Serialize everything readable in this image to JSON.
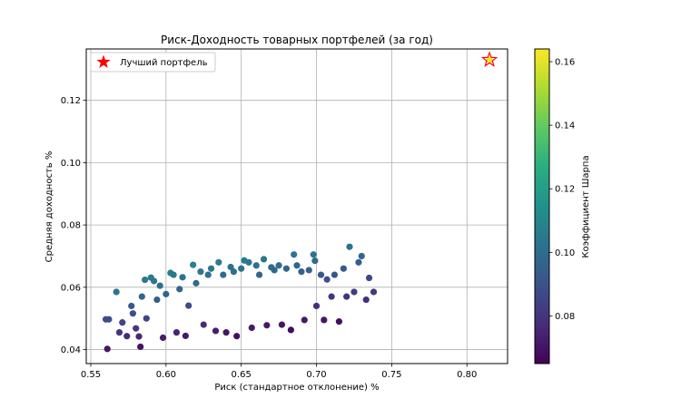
{
  "chart_data": {
    "type": "scatter",
    "title": "Риск-Доходность товарных портфелей (за год)",
    "xlabel": "Риск (стандартное отклонение) %",
    "ylabel": "Средняя доходность %",
    "xlim": [
      0.547,
      0.827
    ],
    "ylim": [
      0.0355,
      0.1365
    ],
    "xticks": [
      {
        "v": 0.55,
        "label": "0.55"
      },
      {
        "v": 0.6,
        "label": "0.60"
      },
      {
        "v": 0.65,
        "label": "0.65"
      },
      {
        "v": 0.7,
        "label": "0.70"
      },
      {
        "v": 0.75,
        "label": "0.75"
      },
      {
        "v": 0.8,
        "label": "0.80"
      }
    ],
    "yticks": [
      {
        "v": 0.04,
        "label": "0.04"
      },
      {
        "v": 0.06,
        "label": "0.06"
      },
      {
        "v": 0.08,
        "label": "0.08"
      },
      {
        "v": 0.1,
        "label": "0.10"
      },
      {
        "v": 0.12,
        "label": "0.12"
      }
    ],
    "grid": true,
    "colormap": "viridis",
    "colorbar": {
      "label": "Коэффициент Шарпа",
      "min": 0.065,
      "max": 0.164,
      "ticks": [
        {
          "v": 0.08,
          "label": "0.08"
        },
        {
          "v": 0.1,
          "label": "0.10"
        },
        {
          "v": 0.12,
          "label": "0.12"
        },
        {
          "v": 0.14,
          "label": "0.14"
        },
        {
          "v": 0.16,
          "label": "0.16"
        }
      ]
    },
    "legend": {
      "position": "top-left",
      "entries": [
        {
          "label": "Лучший портфель",
          "marker": "red-star"
        }
      ]
    },
    "best_portfolio": {
      "x": 0.815,
      "y": 0.133,
      "sharpe": 0.163,
      "color": "#ff0000"
    },
    "points": [
      {
        "x": 0.561,
        "y": 0.0402,
        "c": 0.071
      },
      {
        "x": 0.56,
        "y": 0.0497,
        "c": 0.089
      },
      {
        "x": 0.562,
        "y": 0.0497,
        "c": 0.088
      },
      {
        "x": 0.567,
        "y": 0.0585,
        "c": 0.103
      },
      {
        "x": 0.569,
        "y": 0.0455,
        "c": 0.08
      },
      {
        "x": 0.571,
        "y": 0.0487,
        "c": 0.085
      },
      {
        "x": 0.574,
        "y": 0.0443,
        "c": 0.077
      },
      {
        "x": 0.577,
        "y": 0.054,
        "c": 0.093
      },
      {
        "x": 0.578,
        "y": 0.0516,
        "c": 0.089
      },
      {
        "x": 0.58,
        "y": 0.0468,
        "c": 0.081
      },
      {
        "x": 0.582,
        "y": 0.0442,
        "c": 0.076
      },
      {
        "x": 0.583,
        "y": 0.0409,
        "c": 0.07
      },
      {
        "x": 0.584,
        "y": 0.057,
        "c": 0.097
      },
      {
        "x": 0.586,
        "y": 0.0624,
        "c": 0.105
      },
      {
        "x": 0.587,
        "y": 0.05,
        "c": 0.085
      },
      {
        "x": 0.59,
        "y": 0.0631,
        "c": 0.106
      },
      {
        "x": 0.592,
        "y": 0.062,
        "c": 0.104
      },
      {
        "x": 0.594,
        "y": 0.056,
        "c": 0.094
      },
      {
        "x": 0.596,
        "y": 0.0605,
        "c": 0.101
      },
      {
        "x": 0.598,
        "y": 0.0438,
        "c": 0.073
      },
      {
        "x": 0.6,
        "y": 0.0578,
        "c": 0.096
      },
      {
        "x": 0.603,
        "y": 0.0646,
        "c": 0.106
      },
      {
        "x": 0.605,
        "y": 0.064,
        "c": 0.105
      },
      {
        "x": 0.607,
        "y": 0.0455,
        "c": 0.075
      },
      {
        "x": 0.609,
        "y": 0.0594,
        "c": 0.097
      },
      {
        "x": 0.611,
        "y": 0.0632,
        "c": 0.103
      },
      {
        "x": 0.613,
        "y": 0.0444,
        "c": 0.072
      },
      {
        "x": 0.615,
        "y": 0.0541,
        "c": 0.088
      },
      {
        "x": 0.618,
        "y": 0.0672,
        "c": 0.108
      },
      {
        "x": 0.62,
        "y": 0.0613,
        "c": 0.099
      },
      {
        "x": 0.623,
        "y": 0.065,
        "c": 0.104
      },
      {
        "x": 0.625,
        "y": 0.048,
        "c": 0.077
      },
      {
        "x": 0.628,
        "y": 0.064,
        "c": 0.102
      },
      {
        "x": 0.63,
        "y": 0.066,
        "c": 0.105
      },
      {
        "x": 0.633,
        "y": 0.046,
        "c": 0.073
      },
      {
        "x": 0.635,
        "y": 0.068,
        "c": 0.107
      },
      {
        "x": 0.638,
        "y": 0.064,
        "c": 0.1
      },
      {
        "x": 0.64,
        "y": 0.0455,
        "c": 0.071
      },
      {
        "x": 0.643,
        "y": 0.0665,
        "c": 0.103
      },
      {
        "x": 0.645,
        "y": 0.065,
        "c": 0.101
      },
      {
        "x": 0.647,
        "y": 0.0443,
        "c": 0.069
      },
      {
        "x": 0.65,
        "y": 0.066,
        "c": 0.102
      },
      {
        "x": 0.652,
        "y": 0.0686,
        "c": 0.105
      },
      {
        "x": 0.655,
        "y": 0.068,
        "c": 0.104
      },
      {
        "x": 0.657,
        "y": 0.047,
        "c": 0.072
      },
      {
        "x": 0.66,
        "y": 0.067,
        "c": 0.102
      },
      {
        "x": 0.662,
        "y": 0.064,
        "c": 0.097
      },
      {
        "x": 0.665,
        "y": 0.069,
        "c": 0.104
      },
      {
        "x": 0.667,
        "y": 0.0478,
        "c": 0.072
      },
      {
        "x": 0.67,
        "y": 0.0664,
        "c": 0.099
      },
      {
        "x": 0.672,
        "y": 0.0655,
        "c": 0.098
      },
      {
        "x": 0.675,
        "y": 0.067,
        "c": 0.1
      },
      {
        "x": 0.677,
        "y": 0.048,
        "c": 0.071
      },
      {
        "x": 0.68,
        "y": 0.066,
        "c": 0.098
      },
      {
        "x": 0.683,
        "y": 0.0463,
        "c": 0.068
      },
      {
        "x": 0.685,
        "y": 0.0705,
        "c": 0.103
      },
      {
        "x": 0.687,
        "y": 0.067,
        "c": 0.098
      },
      {
        "x": 0.69,
        "y": 0.065,
        "c": 0.095
      },
      {
        "x": 0.692,
        "y": 0.0495,
        "c": 0.072
      },
      {
        "x": 0.695,
        "y": 0.0655,
        "c": 0.095
      },
      {
        "x": 0.698,
        "y": 0.0705,
        "c": 0.102
      },
      {
        "x": 0.699,
        "y": 0.0685,
        "c": 0.099
      },
      {
        "x": 0.7,
        "y": 0.054,
        "c": 0.078
      },
      {
        "x": 0.703,
        "y": 0.064,
        "c": 0.092
      },
      {
        "x": 0.705,
        "y": 0.0495,
        "c": 0.071
      },
      {
        "x": 0.707,
        "y": 0.0625,
        "c": 0.089
      },
      {
        "x": 0.71,
        "y": 0.057,
        "c": 0.081
      },
      {
        "x": 0.712,
        "y": 0.064,
        "c": 0.091
      },
      {
        "x": 0.715,
        "y": 0.049,
        "c": 0.069
      },
      {
        "x": 0.718,
        "y": 0.066,
        "c": 0.093
      },
      {
        "x": 0.72,
        "y": 0.057,
        "c": 0.08
      },
      {
        "x": 0.722,
        "y": 0.073,
        "c": 0.102
      },
      {
        "x": 0.725,
        "y": 0.0585,
        "c": 0.082
      },
      {
        "x": 0.728,
        "y": 0.068,
        "c": 0.095
      },
      {
        "x": 0.73,
        "y": 0.07,
        "c": 0.097
      },
      {
        "x": 0.733,
        "y": 0.056,
        "c": 0.078
      },
      {
        "x": 0.735,
        "y": 0.063,
        "c": 0.087
      },
      {
        "x": 0.738,
        "y": 0.0585,
        "c": 0.081
      }
    ]
  }
}
